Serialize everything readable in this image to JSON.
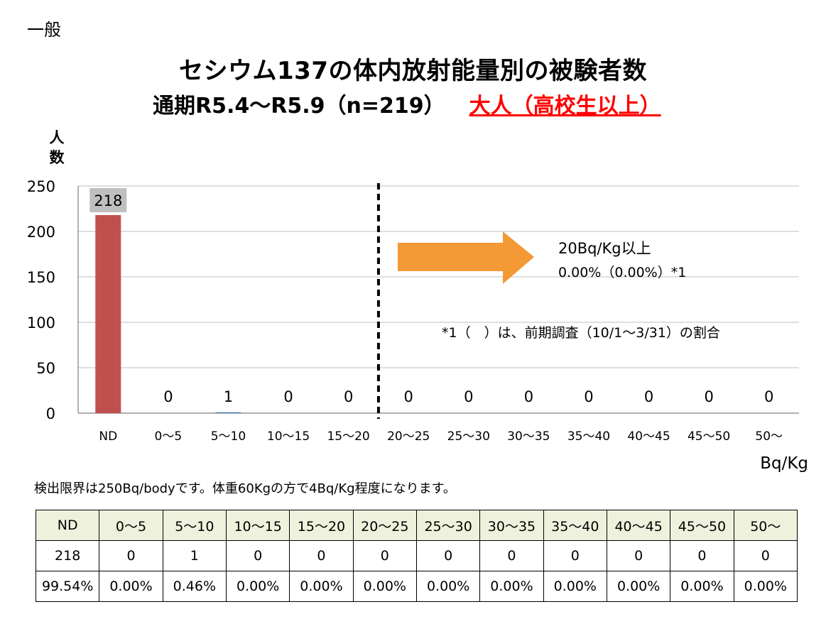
{
  "category_label": "一般",
  "title_line1": "セシウム137の体内放射能量別の被験者数",
  "title_line2_main": "通期R5.4～R5.9（n=219）",
  "title_line2_sub": "大人（高校生以上）",
  "note": "検出限界は250Bq/bodyです。体重60Kgの方で4Bq/Kg程度になります。",
  "annotation": {
    "threshold_label": "20Bq/Kg以上",
    "threshold_value": "0.00%（0.00%）*1",
    "footnote": "*1（　）は、前期調査（10/1～3/31）の割合"
  },
  "colors": {
    "bar_nd": "#c0504d",
    "bar_other": "#4f81bd",
    "data_label_box": "#bfbfbf",
    "arrow": "#f39a36",
    "title_red": "#ff0000",
    "table_header_bg": "#eef2dd"
  },
  "chart_data": {
    "type": "bar",
    "categories": [
      "ND",
      "0～5",
      "5～10",
      "10～15",
      "15～20",
      "20～25",
      "25～30",
      "30～35",
      "35～40",
      "40～45",
      "45～50",
      "50～"
    ],
    "values": [
      218,
      0,
      1,
      0,
      0,
      0,
      0,
      0,
      0,
      0,
      0,
      0
    ],
    "ylabel": "人数",
    "xlabel": "Bq/Kg",
    "ylim": [
      0,
      250
    ],
    "yticks": [
      0,
      50,
      100,
      150,
      200,
      250
    ],
    "grid": true,
    "threshold_after_category": "15～20"
  },
  "table": {
    "headers": [
      "ND",
      "0～5",
      "5～10",
      "10～15",
      "15～20",
      "20～25",
      "25～30",
      "30～35",
      "35～40",
      "40～45",
      "45～50",
      "50～"
    ],
    "counts": [
      "218",
      "0",
      "1",
      "0",
      "0",
      "0",
      "0",
      "0",
      "0",
      "0",
      "0",
      "0"
    ],
    "percents": [
      "99.54%",
      "0.00%",
      "0.46%",
      "0.00%",
      "0.00%",
      "0.00%",
      "0.00%",
      "0.00%",
      "0.00%",
      "0.00%",
      "0.00%",
      "0.00%"
    ]
  }
}
